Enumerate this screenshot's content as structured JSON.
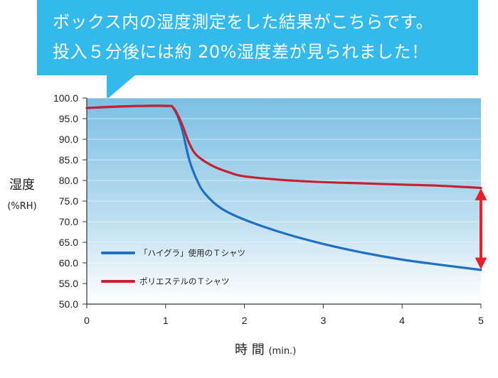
{
  "callout": {
    "line1": "ボックス内の湿度測定をした結果がこちらです。",
    "line2": "投入５分後には約 20%湿度差が見られました！",
    "color": "#33b9ec"
  },
  "axis": {
    "ylabel_main": "湿度",
    "ylabel_unit": "(%RH)",
    "xlabel_main": "時 間",
    "xlabel_unit": "(min.)"
  },
  "chart_data": {
    "type": "line",
    "xlim": [
      0,
      5
    ],
    "ylim": [
      50,
      100
    ],
    "x_ticks": [
      0,
      1,
      2,
      3,
      4,
      5
    ],
    "y_ticks": [
      "50.0",
      "55.0",
      "60.0",
      "65.0",
      "70.0",
      "75.0",
      "80.0",
      "85.0",
      "90.0",
      "95.0",
      "100.0"
    ],
    "grid": true,
    "legend_position": "bottom-left",
    "series": [
      {
        "name": "「ハイグラ」使用のＴシャツ",
        "color": "#1f6fc2",
        "x": [
          0,
          0.5,
          1.0,
          1.1,
          1.2,
          1.3,
          1.4,
          1.5,
          1.7,
          2.0,
          2.5,
          3.0,
          3.5,
          4.0,
          4.5,
          5.0
        ],
        "y": [
          97.6,
          98.0,
          98.1,
          97.5,
          93.0,
          85.0,
          80.0,
          76.8,
          73.3,
          70.5,
          67.2,
          64.6,
          62.5,
          60.8,
          59.5,
          58.3
        ]
      },
      {
        "name": "ポリエステルのＴシャツ",
        "color": "#c5212e",
        "x": [
          0,
          0.5,
          1.0,
          1.1,
          1.2,
          1.3,
          1.4,
          1.6,
          1.8,
          2.0,
          2.5,
          3.0,
          3.5,
          4.0,
          4.5,
          5.0
        ],
        "y": [
          97.6,
          98.0,
          98.1,
          97.6,
          94.0,
          89.0,
          86.0,
          83.5,
          82.0,
          81.0,
          80.1,
          79.6,
          79.3,
          79.0,
          78.7,
          78.2
        ]
      }
    ],
    "annotation": {
      "type": "double-arrow",
      "x": 5,
      "y_from": 58.3,
      "y_to": 78.2,
      "color": "#e8202a"
    }
  }
}
